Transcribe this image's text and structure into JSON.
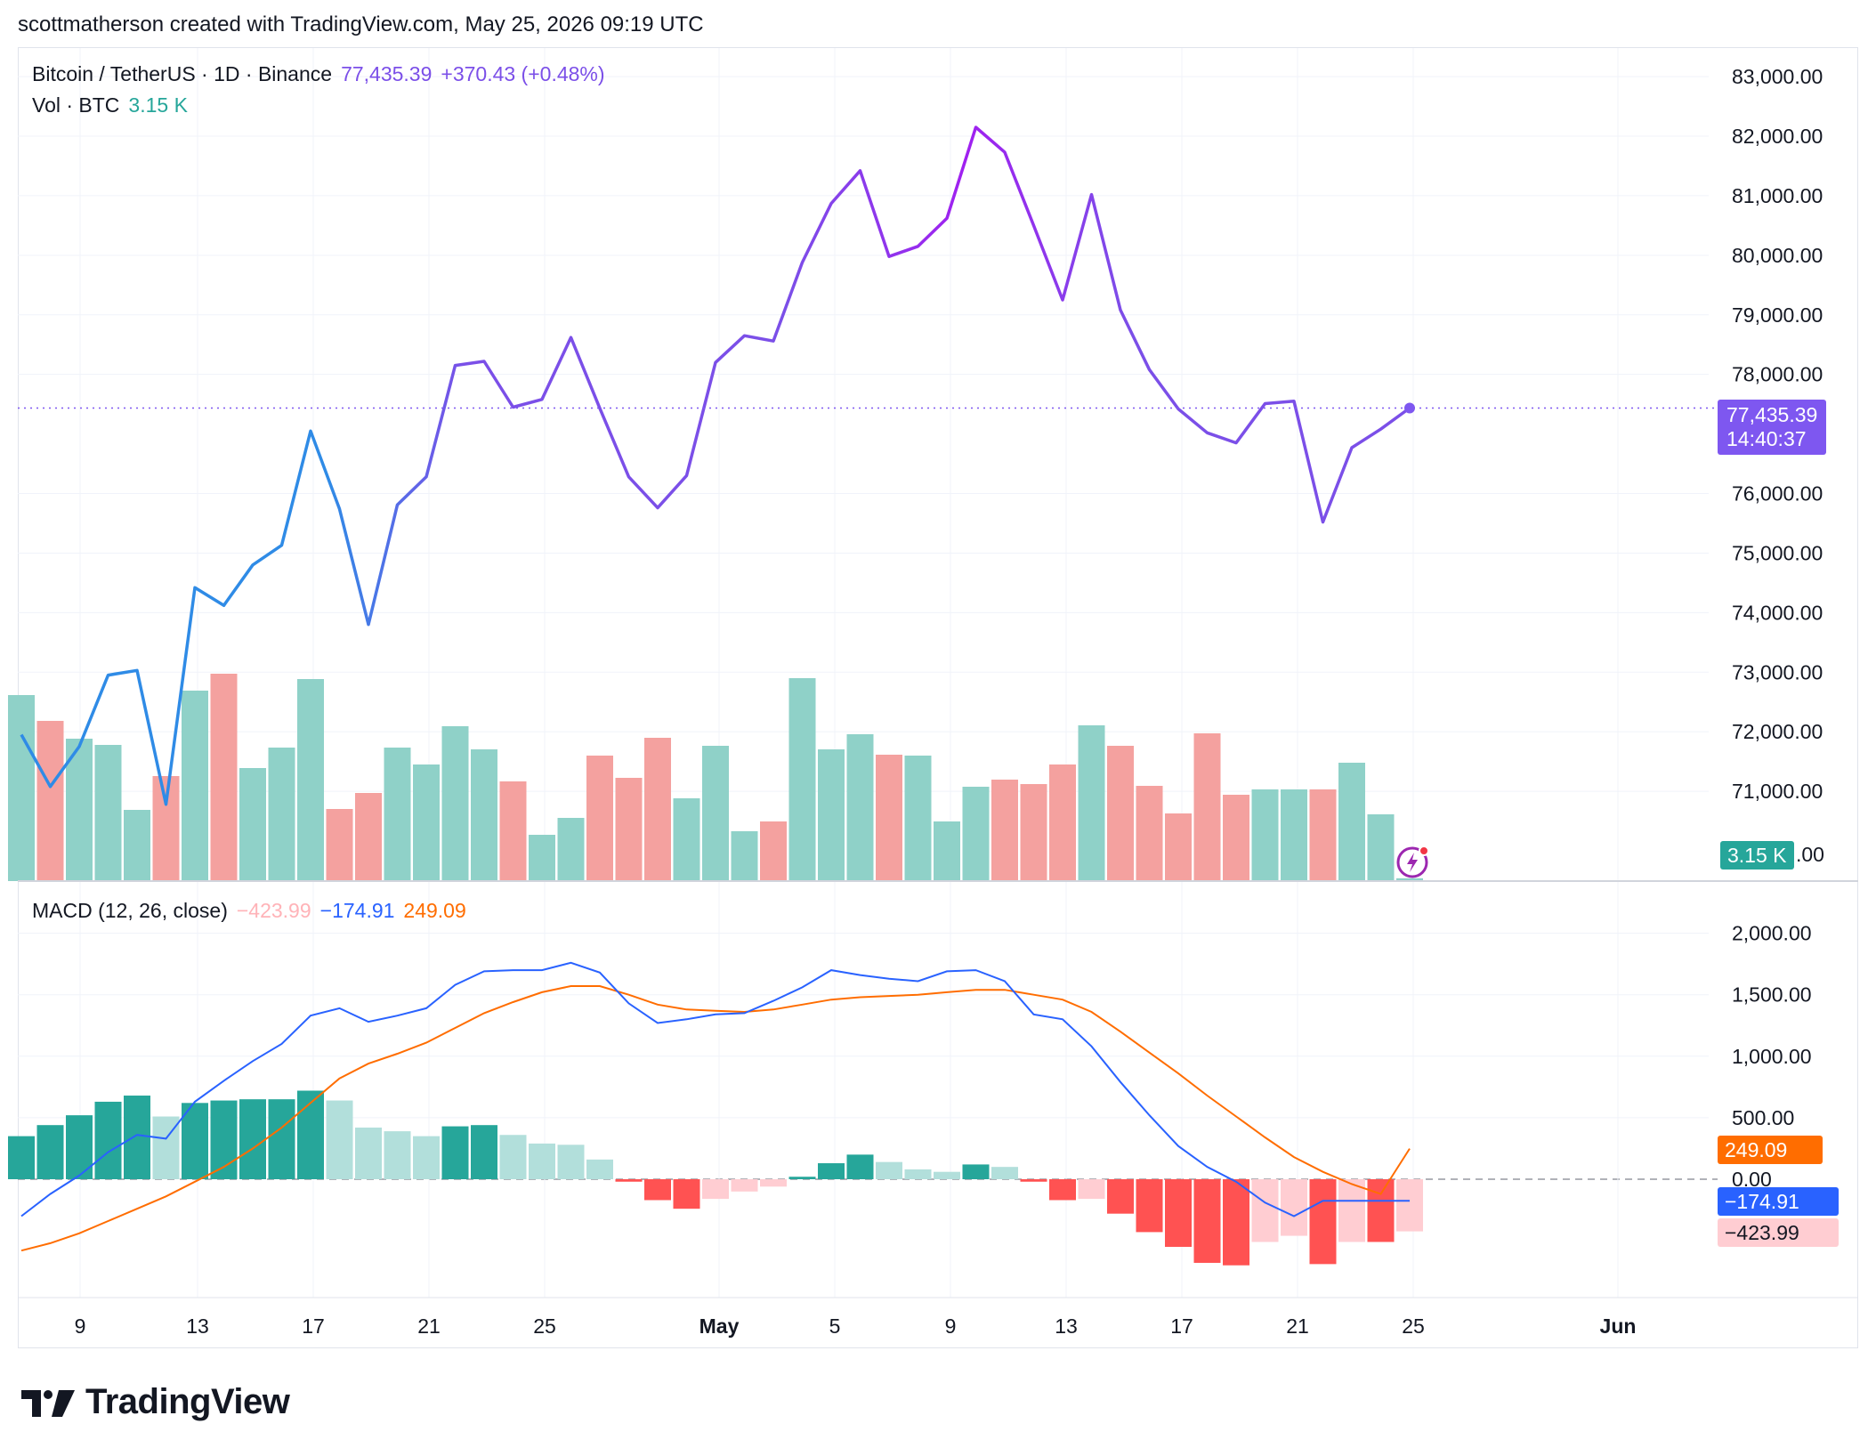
{
  "header": {
    "credit": "scottmatherson created with TradingView.com, May 25, 2026 09:19 UTC"
  },
  "legend": {
    "symbol": "Bitcoin / TetherUS · 1D · Binance",
    "last": "77,435.39",
    "change": "+370.43 (+0.48%)",
    "vol_label": "Vol · BTC",
    "vol_value": "3.15 K",
    "macd_label": "MACD (12, 26, close)",
    "macd_hist": "−423.99",
    "macd_line": "−174.91",
    "macd_signal": "249.09"
  },
  "badges": {
    "price": "77,435.39",
    "countdown": "14:40:37",
    "volume": "3.15 K",
    "signal": "249.09",
    "macd": "−174.91",
    "hist": "−423.99"
  },
  "footer": {
    "brand": "TradingView"
  },
  "colors": {
    "price_line_early": "#2f8be6",
    "price_line_mid": "#7b4fe8",
    "price_line_late": "#a020f0",
    "price_badge": "#7e57f0",
    "vol_up": "#8fd1c8",
    "vol_down": "#f4a19f",
    "macd_line": "#2962ff",
    "signal_line": "#ff6d00",
    "hist_up_strong": "#26a69a",
    "hist_up_weak": "#b2dfdb",
    "hist_down_strong": "#ff5252",
    "hist_down_weak": "#ffcdd2"
  },
  "chart_data": [
    {
      "type": "line",
      "title": "Bitcoin / TetherUS · 1D · Binance",
      "x": [
        "Apr 7",
        "Apr 8",
        "Apr 9",
        "Apr 10",
        "Apr 11",
        "Apr 12",
        "Apr 13",
        "Apr 14",
        "Apr 15",
        "Apr 16",
        "Apr 17",
        "Apr 18",
        "Apr 19",
        "Apr 20",
        "Apr 21",
        "Apr 22",
        "Apr 23",
        "Apr 24",
        "Apr 25",
        "Apr 26",
        "Apr 27",
        "Apr 28",
        "Apr 29",
        "Apr 30",
        "May 1",
        "May 2",
        "May 3",
        "May 4",
        "May 5",
        "May 6",
        "May 7",
        "May 8",
        "May 9",
        "May 10",
        "May 11",
        "May 12",
        "May 13",
        "May 14",
        "May 15",
        "May 16",
        "May 17",
        "May 18",
        "May 19",
        "May 20",
        "May 21",
        "May 22",
        "May 23",
        "May 24",
        "May 25"
      ],
      "values": [
        71950,
        71080,
        71750,
        72950,
        73030,
        70780,
        74420,
        74120,
        74800,
        75130,
        77050,
        75740,
        73800,
        75810,
        76280,
        78150,
        78220,
        77450,
        77580,
        78620,
        77430,
        76280,
        75760,
        76300,
        78200,
        78650,
        78560,
        79880,
        80870,
        81420,
        79980,
        80150,
        80620,
        82150,
        81730,
        80500,
        79250,
        81020,
        79080,
        78080,
        77420,
        77020,
        76850,
        77510,
        77550,
        75520,
        76770,
        77080,
        77435.39
      ],
      "ylim": [
        70500,
        83300
      ],
      "yticks": [
        71000,
        72000,
        73000,
        74000,
        75000,
        76000,
        78000,
        79000,
        80000,
        81000,
        82000,
        83000
      ],
      "last": 77435.39,
      "grid": true
    },
    {
      "type": "bar",
      "title": "Vol · BTC",
      "x": [
        "Apr 7",
        "Apr 8",
        "Apr 9",
        "Apr 10",
        "Apr 11",
        "Apr 12",
        "Apr 13",
        "Apr 14",
        "Apr 15",
        "Apr 16",
        "Apr 17",
        "Apr 18",
        "Apr 19",
        "Apr 20",
        "Apr 21",
        "Apr 22",
        "Apr 23",
        "Apr 24",
        "Apr 25",
        "Apr 26",
        "Apr 27",
        "Apr 28",
        "Apr 29",
        "Apr 30",
        "May 1",
        "May 2",
        "May 3",
        "May 4",
        "May 5",
        "May 6",
        "May 7",
        "May 8",
        "May 9",
        "May 10",
        "May 11",
        "May 12",
        "May 13",
        "May 14",
        "May 15",
        "May 16",
        "May 17",
        "May 18",
        "May 19",
        "May 20",
        "May 21",
        "May 22",
        "May 23",
        "May 24",
        "May 25"
      ],
      "values": [
        209,
        180,
        160,
        153,
        80,
        118,
        214,
        233,
        127,
        150,
        227,
        81,
        99,
        150,
        131,
        174,
        148,
        112,
        52,
        71,
        141,
        116,
        161,
        93,
        152,
        56,
        67,
        228,
        148,
        165,
        142,
        141,
        67,
        106,
        114,
        109,
        131,
        175,
        152,
        107,
        76,
        166,
        97,
        103,
        103,
        103,
        133,
        75,
        3.15
      ],
      "direction": [
        "up",
        "down",
        "up",
        "up",
        "up",
        "down",
        "up",
        "down",
        "up",
        "up",
        "up",
        "down",
        "down",
        "up",
        "up",
        "up",
        "up",
        "down",
        "up",
        "up",
        "down",
        "down",
        "down",
        "up",
        "up",
        "up",
        "down",
        "up",
        "up",
        "up",
        "down",
        "up",
        "up",
        "up",
        "down",
        "down",
        "down",
        "up",
        "down",
        "down",
        "down",
        "down",
        "down",
        "up",
        "up",
        "down",
        "up",
        "up",
        "up"
      ],
      "last": "3.15 K"
    },
    {
      "type": "line",
      "title": "MACD (12, 26, close)",
      "x": [
        "Apr 7",
        "Apr 8",
        "Apr 9",
        "Apr 10",
        "Apr 11",
        "Apr 12",
        "Apr 13",
        "Apr 14",
        "Apr 15",
        "Apr 16",
        "Apr 17",
        "Apr 18",
        "Apr 19",
        "Apr 20",
        "Apr 21",
        "Apr 22",
        "Apr 23",
        "Apr 24",
        "Apr 25",
        "Apr 26",
        "Apr 27",
        "Apr 28",
        "Apr 29",
        "Apr 30",
        "May 1",
        "May 2",
        "May 3",
        "May 4",
        "May 5",
        "May 6",
        "May 7",
        "May 8",
        "May 9",
        "May 10",
        "May 11",
        "May 12",
        "May 13",
        "May 14",
        "May 15",
        "May 16",
        "May 17",
        "May 18",
        "May 19",
        "May 20",
        "May 21",
        "May 22",
        "May 23",
        "May 24",
        "May 25"
      ],
      "yticks": [
        0,
        500,
        1000,
        1500,
        2000
      ],
      "ylim": [
        -900,
        2150
      ],
      "series": [
        {
          "name": "MACD",
          "values": [
            -300,
            -120,
            30,
            220,
            360,
            330,
            630,
            800,
            960,
            1100,
            1330,
            1390,
            1280,
            1330,
            1390,
            1580,
            1690,
            1700,
            1700,
            1760,
            1680,
            1430,
            1270,
            1300,
            1340,
            1350,
            1450,
            1560,
            1700,
            1660,
            1630,
            1610,
            1690,
            1700,
            1610,
            1340,
            1300,
            1080,
            790,
            520,
            270,
            100,
            -20,
            -190,
            -300,
            -174.91,
            -174.91,
            -174.91,
            -174.91
          ]
        },
        {
          "name": "Signal",
          "values": [
            -580,
            -520,
            -440,
            -340,
            -240,
            -140,
            -20,
            100,
            250,
            420,
            620,
            820,
            940,
            1020,
            1110,
            1230,
            1350,
            1440,
            1520,
            1570,
            1570,
            1500,
            1420,
            1380,
            1370,
            1360,
            1380,
            1420,
            1460,
            1480,
            1490,
            1500,
            1520,
            1540,
            1540,
            1500,
            1460,
            1360,
            1200,
            1030,
            860,
            680,
            510,
            340,
            180,
            60,
            -40,
            -120,
            249.09
          ]
        },
        {
          "name": "Histogram",
          "values": [
            350,
            440,
            520,
            630,
            680,
            510,
            620,
            640,
            650,
            650,
            720,
            640,
            420,
            390,
            350,
            430,
            440,
            360,
            290,
            280,
            160,
            -20,
            -170,
            -240,
            -160,
            -100,
            -60,
            20,
            130,
            200,
            140,
            80,
            60,
            120,
            100,
            -20,
            -170,
            -160,
            -280,
            -430,
            -550,
            -680,
            -700,
            -510,
            -460,
            -690,
            -510,
            -510,
            -423.99
          ]
        }
      ]
    }
  ],
  "time_axis": [
    "9",
    "13",
    "17",
    "21",
    "25",
    "May",
    "5",
    "9",
    "13",
    "17",
    "21",
    "25",
    "Jun"
  ]
}
